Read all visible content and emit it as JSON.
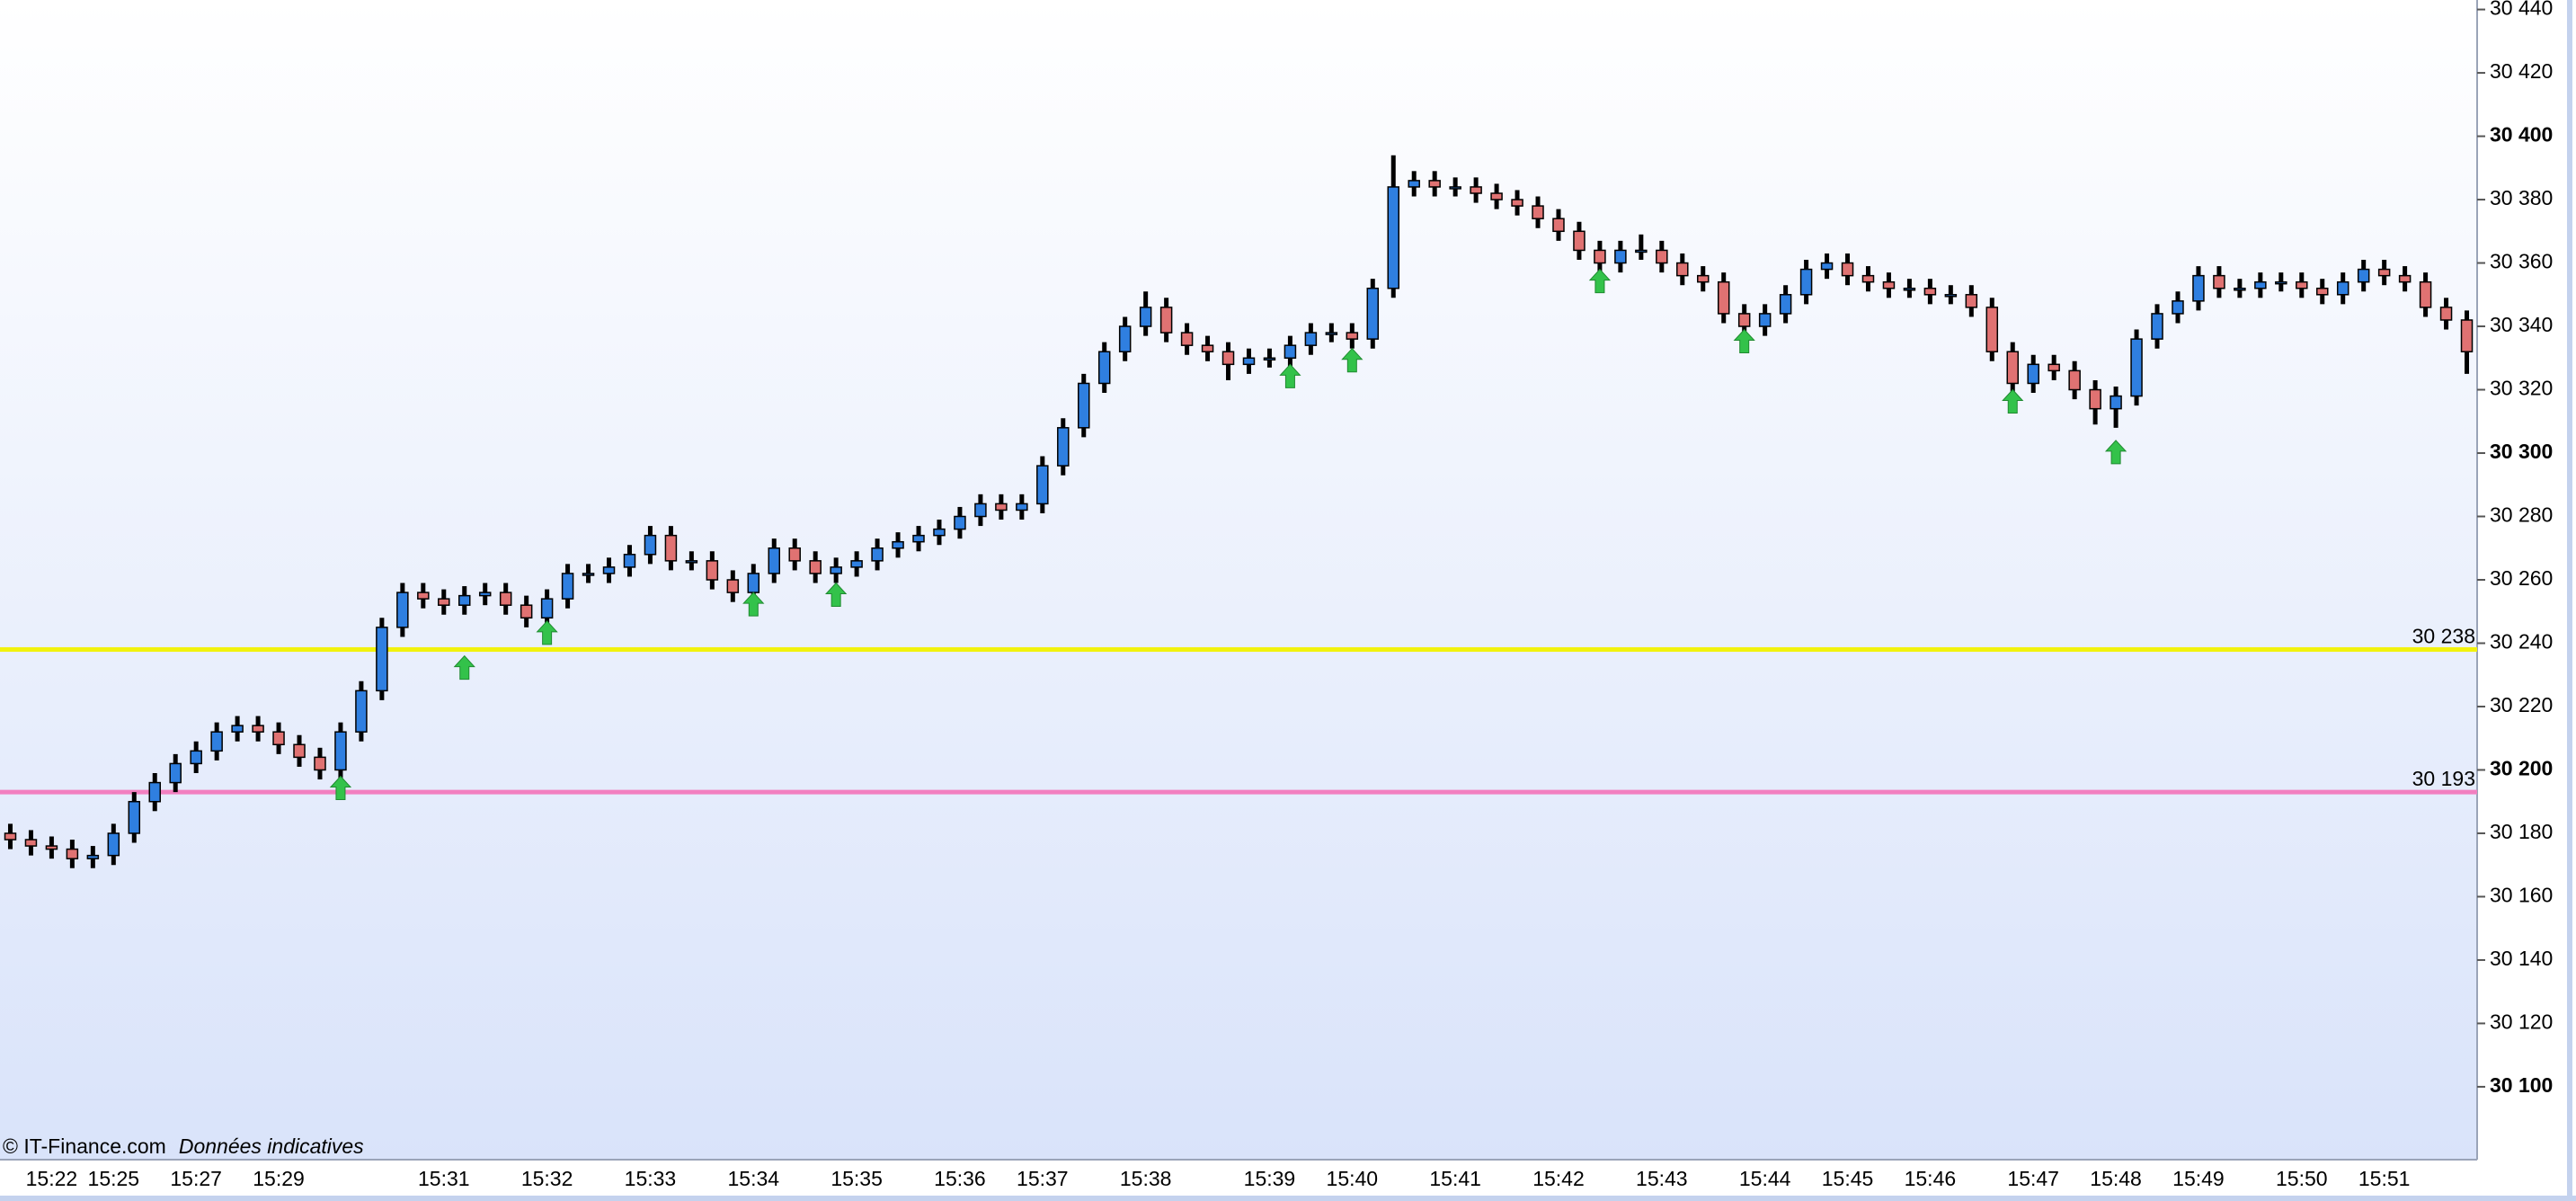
{
  "chart_data": {
    "type": "candlestick",
    "categories": [
      null,
      null,
      "15:22",
      null,
      null,
      "15:25",
      null,
      null,
      null,
      "15:27",
      null,
      null,
      null,
      "15:29",
      null,
      null,
      null,
      null,
      null,
      null,
      null,
      "15:31",
      null,
      null,
      null,
      null,
      "15:32",
      null,
      null,
      null,
      null,
      "15:33",
      null,
      null,
      null,
      null,
      "15:34",
      null,
      null,
      null,
      null,
      "15:35",
      null,
      null,
      null,
      null,
      "15:36",
      null,
      null,
      null,
      "15:37",
      null,
      null,
      null,
      null,
      "15:38",
      null,
      null,
      null,
      null,
      null,
      "15:39",
      null,
      null,
      null,
      "15:40",
      null,
      null,
      null,
      null,
      "15:41",
      null,
      null,
      null,
      null,
      "15:42",
      null,
      null,
      null,
      null,
      "15:43",
      null,
      null,
      null,
      null,
      "15:44",
      null,
      null,
      null,
      "15:45",
      null,
      null,
      null,
      "15:46",
      null,
      null,
      null,
      null,
      "15:47",
      null,
      null,
      null,
      "15:48",
      null,
      null,
      null,
      "15:49",
      null,
      null,
      null,
      null,
      "15:50",
      null,
      null,
      null,
      "15:51",
      null,
      null,
      null,
      null
    ],
    "open": [
      30180,
      30178,
      30176,
      30175,
      30172,
      30173,
      30180,
      30190,
      30196,
      30202,
      30206,
      30212,
      30214,
      30212,
      30208,
      30204,
      30200,
      30212,
      30225,
      30245,
      30256,
      30254,
      30252,
      30255,
      30256,
      30252,
      30248,
      30254,
      30262,
      30262,
      30264,
      30268,
      30274,
      30266,
      30266,
      30260,
      30256,
      30262,
      30270,
      30266,
      30262,
      30264,
      30266,
      30270,
      30272,
      30274,
      30276,
      30280,
      30284,
      30282,
      30284,
      30296,
      30308,
      30322,
      30332,
      30340,
      30346,
      30338,
      30334,
      30332,
      30328,
      30330,
      30330,
      30334,
      30338,
      30338,
      30336,
      30352,
      30384,
      30386,
      30384,
      30384,
      30382,
      30380,
      30378,
      30374,
      30370,
      30364,
      30360,
      30364,
      30364,
      30360,
      30356,
      30354,
      30344,
      30340,
      30344,
      30350,
      30358,
      30360,
      30356,
      30354,
      30352,
      30352,
      30350,
      30350,
      30346,
      30332,
      30322,
      30328,
      30326,
      30320,
      30314,
      30318,
      30336,
      30344,
      30348,
      30356,
      30352,
      30352,
      30354,
      30354,
      30352,
      30350,
      30354,
      30358,
      30356,
      30354,
      30346,
      30342
    ],
    "high": [
      30183,
      30181,
      30179,
      30178,
      30176,
      30183,
      30193,
      30199,
      30205,
      30209,
      30215,
      30217,
      30217,
      30215,
      30211,
      30207,
      30215,
      30228,
      30248,
      30259,
      30259,
      30257,
      30258,
      30259,
      30259,
      30255,
      30257,
      30265,
      30265,
      30267,
      30271,
      30277,
      30277,
      30269,
      30269,
      30263,
      30265,
      30273,
      30273,
      30269,
      30267,
      30269,
      30273,
      30275,
      30277,
      30279,
      30283,
      30287,
      30287,
      30287,
      30299,
      30311,
      30325,
      30335,
      30343,
      30351,
      30349,
      30341,
      30337,
      30335,
      30333,
      30333,
      30337,
      30341,
      30341,
      30341,
      30355,
      30394,
      30389,
      30389,
      30387,
      30387,
      30385,
      30383,
      30381,
      30377,
      30373,
      30367,
      30367,
      30369,
      30367,
      30363,
      30359,
      30357,
      30347,
      30347,
      30353,
      30361,
      30363,
      30363,
      30359,
      30357,
      30355,
      30355,
      30353,
      30353,
      30349,
      30335,
      30331,
      30331,
      30329,
      30323,
      30321,
      30339,
      30347,
      30351,
      30359,
      30359,
      30355,
      30357,
      30357,
      30357,
      30355,
      30357,
      30361,
      30361,
      30359,
      30357,
      30349,
      30345
    ],
    "low": [
      30175,
      30173,
      30172,
      30169,
      30169,
      30170,
      30177,
      30187,
      30193,
      30199,
      30203,
      30209,
      30209,
      30205,
      30201,
      30197,
      30197,
      30209,
      30222,
      30242,
      30251,
      30249,
      30249,
      30252,
      30249,
      30245,
      30245,
      30251,
      30259,
      30259,
      30261,
      30265,
      30263,
      30263,
      30257,
      30253,
      30253,
      30259,
      30263,
      30259,
      30259,
      30261,
      30263,
      30267,
      30269,
      30271,
      30273,
      30277,
      30279,
      30279,
      30281,
      30293,
      30305,
      30319,
      30329,
      30337,
      30335,
      30331,
      30329,
      30323,
      30325,
      30327,
      30327,
      30331,
      30335,
      30333,
      30333,
      30349,
      30381,
      30381,
      30381,
      30379,
      30377,
      30375,
      30371,
      30367,
      30361,
      30357,
      30357,
      30361,
      30357,
      30353,
      30351,
      30341,
      30337,
      30337,
      30341,
      30347,
      30355,
      30353,
      30351,
      30349,
      30349,
      30347,
      30347,
      30343,
      30329,
      30317,
      30319,
      30323,
      30317,
      30309,
      30308,
      30315,
      30333,
      30341,
      30345,
      30349,
      30349,
      30349,
      30351,
      30349,
      30347,
      30347,
      30351,
      30353,
      30351,
      30343,
      30339,
      30325
    ],
    "close": [
      30178,
      30176,
      30175,
      30172,
      30173,
      30180,
      30190,
      30196,
      30202,
      30206,
      30212,
      30214,
      30212,
      30208,
      30204,
      30200,
      30212,
      30225,
      30245,
      30256,
      30254,
      30252,
      30255,
      30256,
      30252,
      30248,
      30254,
      30262,
      30262,
      30264,
      30268,
      30274,
      30266,
      30266,
      30260,
      30256,
      30262,
      30270,
      30266,
      30262,
      30264,
      30266,
      30270,
      30272,
      30274,
      30276,
      30280,
      30284,
      30282,
      30284,
      30296,
      30308,
      30322,
      30332,
      30340,
      30346,
      30338,
      30334,
      30332,
      30328,
      30330,
      30330,
      30334,
      30338,
      30338,
      30336,
      30352,
      30384,
      30386,
      30384,
      30384,
      30382,
      30380,
      30378,
      30374,
      30370,
      30364,
      30360,
      30364,
      30364,
      30360,
      30356,
      30354,
      30344,
      30340,
      30344,
      30350,
      30358,
      30360,
      30356,
      30354,
      30352,
      30352,
      30350,
      30350,
      30346,
      30332,
      30322,
      30328,
      30326,
      30320,
      30314,
      30318,
      30336,
      30344,
      30348,
      30356,
      30352,
      30352,
      30354,
      30354,
      30352,
      30350,
      30354,
      30358,
      30356,
      30354,
      30346,
      30342,
      30332
    ],
    "up_color": "#2f7fe0",
    "down_color": "#e07272",
    "signals": {
      "color": "#33c24a",
      "values": [
        null,
        null,
        null,
        null,
        null,
        null,
        null,
        null,
        null,
        null,
        null,
        null,
        null,
        null,
        null,
        null,
        30198,
        null,
        null,
        null,
        null,
        null,
        30236,
        null,
        null,
        null,
        30247,
        null,
        null,
        null,
        null,
        null,
        null,
        null,
        null,
        null,
        30256,
        null,
        null,
        null,
        30259,
        null,
        null,
        null,
        null,
        null,
        null,
        null,
        null,
        null,
        null,
        null,
        null,
        null,
        null,
        null,
        null,
        null,
        null,
        null,
        null,
        null,
        30328,
        null,
        null,
        30333,
        null,
        null,
        null,
        null,
        null,
        null,
        null,
        null,
        null,
        null,
        null,
        30358,
        null,
        null,
        null,
        null,
        null,
        null,
        30339,
        null,
        null,
        null,
        null,
        null,
        null,
        null,
        null,
        null,
        null,
        null,
        null,
        30320,
        null,
        null,
        null,
        null,
        30304,
        null,
        null,
        null,
        null,
        null,
        null,
        null,
        null,
        null,
        null,
        null,
        null,
        null,
        null,
        null,
        null,
        null
      ]
    },
    "levels": [
      {
        "value": 30238,
        "label": "30 238",
        "color": "#f2f20c"
      },
      {
        "value": 30193,
        "label": "30 193",
        "color": "#f27fc0"
      }
    ],
    "ylim": [
      30077,
      30443
    ],
    "yticks": [
      {
        "value": 30100,
        "label": "30 100"
      },
      {
        "value": 30120,
        "label": "30 120"
      },
      {
        "value": 30140,
        "label": "30 140"
      },
      {
        "value": 30160,
        "label": "30 160"
      },
      {
        "value": 30180,
        "label": "30 180"
      },
      {
        "value": 30200,
        "label": "30 200"
      },
      {
        "value": 30220,
        "label": "30 220"
      },
      {
        "value": 30240,
        "label": "30 240"
      },
      {
        "value": 30260,
        "label": "30 260"
      },
      {
        "value": 30280,
        "label": "30 280"
      },
      {
        "value": 30300,
        "label": "30 300"
      },
      {
        "value": 30320,
        "label": "30 320"
      },
      {
        "value": 30340,
        "label": "30 340"
      },
      {
        "value": 30360,
        "label": "30 360"
      },
      {
        "value": 30380,
        "label": "30 380"
      },
      {
        "value": 30400,
        "label": "30 400"
      },
      {
        "value": 30420,
        "label": "30 420"
      },
      {
        "value": 30440,
        "label": "30 440"
      }
    ]
  },
  "footer": {
    "source": "© IT-Finance.com",
    "note": "Données indicatives"
  }
}
